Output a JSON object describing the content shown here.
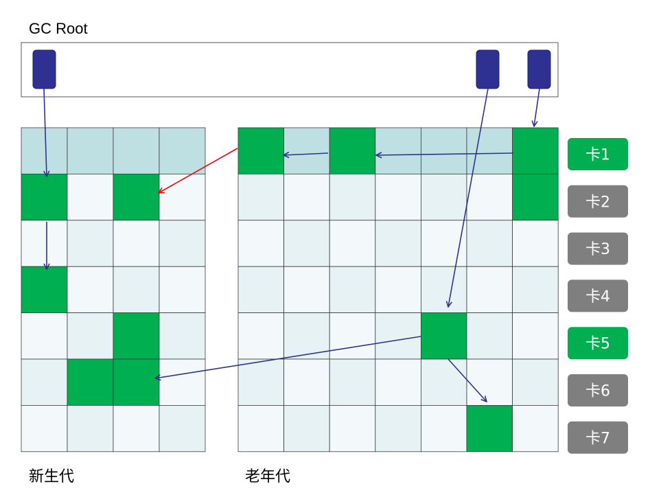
{
  "title": "GC Root",
  "labels": {
    "young": "新生代",
    "old": "老年代"
  },
  "colors": {
    "root_block": "#2e3192",
    "green": "#00b050",
    "gray": "#7f7f7f",
    "cell_light": "#f3f8fa",
    "cell_mid": "#e6f2f3",
    "cell_header": "#bfe0e3",
    "arrow_blue": "#2e3192",
    "arrow_red": "#ff0000"
  },
  "young_gen": {
    "rows": 7,
    "cols": 4,
    "green_cells": [
      [
        1,
        0
      ],
      [
        1,
        2
      ],
      [
        3,
        0
      ],
      [
        4,
        2
      ],
      [
        5,
        1
      ],
      [
        5,
        2
      ]
    ]
  },
  "old_gen": {
    "rows": 7,
    "cols": 7,
    "green_cells": [
      [
        0,
        0
      ],
      [
        0,
        2
      ],
      [
        0,
        6
      ],
      [
        1,
        6
      ],
      [
        4,
        4
      ],
      [
        6,
        5
      ]
    ]
  },
  "cards": [
    {
      "label": "卡1",
      "state": "dirty"
    },
    {
      "label": "卡2",
      "state": "clean"
    },
    {
      "label": "卡3",
      "state": "clean"
    },
    {
      "label": "卡4",
      "state": "clean"
    },
    {
      "label": "卡5",
      "state": "dirty"
    },
    {
      "label": "卡6",
      "state": "clean"
    },
    {
      "label": "卡7",
      "state": "clean"
    }
  ],
  "root_blocks": 3
}
